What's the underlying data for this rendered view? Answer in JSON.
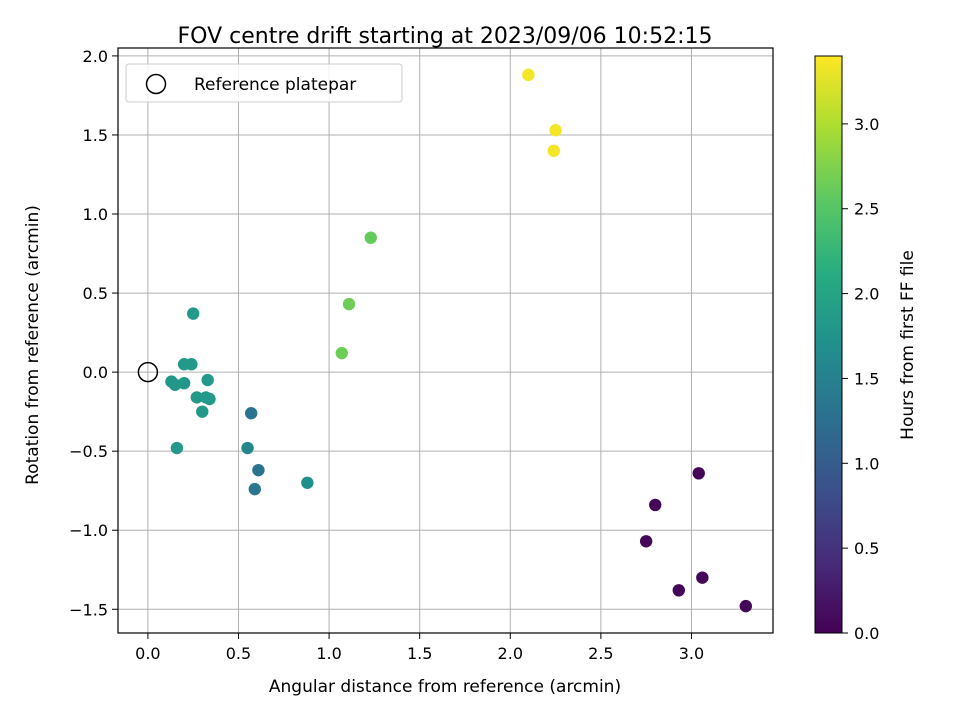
{
  "chart_data": {
    "type": "scatter",
    "title": "FOV centre drift starting at 2023/09/06 10:52:15",
    "xlabel": "Angular distance from reference (arcmin)",
    "ylabel": "Rotation from reference (arcmin)",
    "xlim": [
      -0.165,
      3.45
    ],
    "ylim": [
      -1.65,
      2.05
    ],
    "x_ticks": [
      0.0,
      0.5,
      1.0,
      1.5,
      2.0,
      2.5,
      3.0
    ],
    "x_tick_labels": [
      "0.0",
      "0.5",
      "1.0",
      "1.5",
      "2.0",
      "2.5",
      "3.0"
    ],
    "y_ticks": [
      -1.5,
      -1.0,
      -0.5,
      0.0,
      0.5,
      1.0,
      1.5,
      2.0
    ],
    "y_tick_labels": [
      "−1.5",
      "−1.0",
      "−0.5",
      "0.0",
      "0.5",
      "1.0",
      "1.5",
      "2.0"
    ],
    "grid": true,
    "legend": {
      "position": "upper-left",
      "label": "Reference platepar"
    },
    "reference_point": {
      "x": 0.0,
      "y": 0.0
    },
    "colorbar": {
      "label": "Hours from first FF file",
      "range": [
        0.0,
        3.4
      ],
      "colormap": "viridis",
      "ticks": [
        0.0,
        0.5,
        1.0,
        1.5,
        2.0,
        2.5,
        3.0
      ],
      "tick_labels": [
        "0.0",
        "0.5",
        "1.0",
        "1.5",
        "2.0",
        "2.5",
        "3.0"
      ]
    },
    "points": [
      {
        "x": 3.04,
        "y": -0.64,
        "c": 0.05
      },
      {
        "x": 2.8,
        "y": -0.84,
        "c": 0.05
      },
      {
        "x": 2.75,
        "y": -1.07,
        "c": 0.05
      },
      {
        "x": 3.06,
        "y": -1.3,
        "c": 0.05
      },
      {
        "x": 2.93,
        "y": -1.38,
        "c": 0.05
      },
      {
        "x": 3.3,
        "y": -1.48,
        "c": 0.05
      },
      {
        "x": 0.57,
        "y": -0.26,
        "c": 1.3
      },
      {
        "x": 0.61,
        "y": -0.62,
        "c": 1.3
      },
      {
        "x": 0.59,
        "y": -0.74,
        "c": 1.35
      },
      {
        "x": 0.55,
        "y": -0.48,
        "c": 1.55
      },
      {
        "x": 0.88,
        "y": -0.7,
        "c": 1.7
      },
      {
        "x": 0.16,
        "y": -0.48,
        "c": 1.8
      },
      {
        "x": 0.25,
        "y": 0.37,
        "c": 1.85
      },
      {
        "x": 0.2,
        "y": 0.05,
        "c": 1.85
      },
      {
        "x": 0.24,
        "y": 0.05,
        "c": 1.85
      },
      {
        "x": 0.13,
        "y": -0.06,
        "c": 1.8
      },
      {
        "x": 0.15,
        "y": -0.08,
        "c": 1.8
      },
      {
        "x": 0.2,
        "y": -0.07,
        "c": 1.8
      },
      {
        "x": 0.33,
        "y": -0.05,
        "c": 1.85
      },
      {
        "x": 0.27,
        "y": -0.16,
        "c": 1.85
      },
      {
        "x": 0.32,
        "y": -0.16,
        "c": 1.85
      },
      {
        "x": 0.34,
        "y": -0.17,
        "c": 1.85
      },
      {
        "x": 0.3,
        "y": -0.25,
        "c": 1.85
      },
      {
        "x": 1.07,
        "y": 0.12,
        "c": 2.65
      },
      {
        "x": 1.11,
        "y": 0.43,
        "c": 2.65
      },
      {
        "x": 1.23,
        "y": 0.85,
        "c": 2.6
      },
      {
        "x": 2.1,
        "y": 1.88,
        "c": 3.35
      },
      {
        "x": 2.25,
        "y": 1.53,
        "c": 3.35
      },
      {
        "x": 2.24,
        "y": 1.4,
        "c": 3.35
      }
    ]
  }
}
